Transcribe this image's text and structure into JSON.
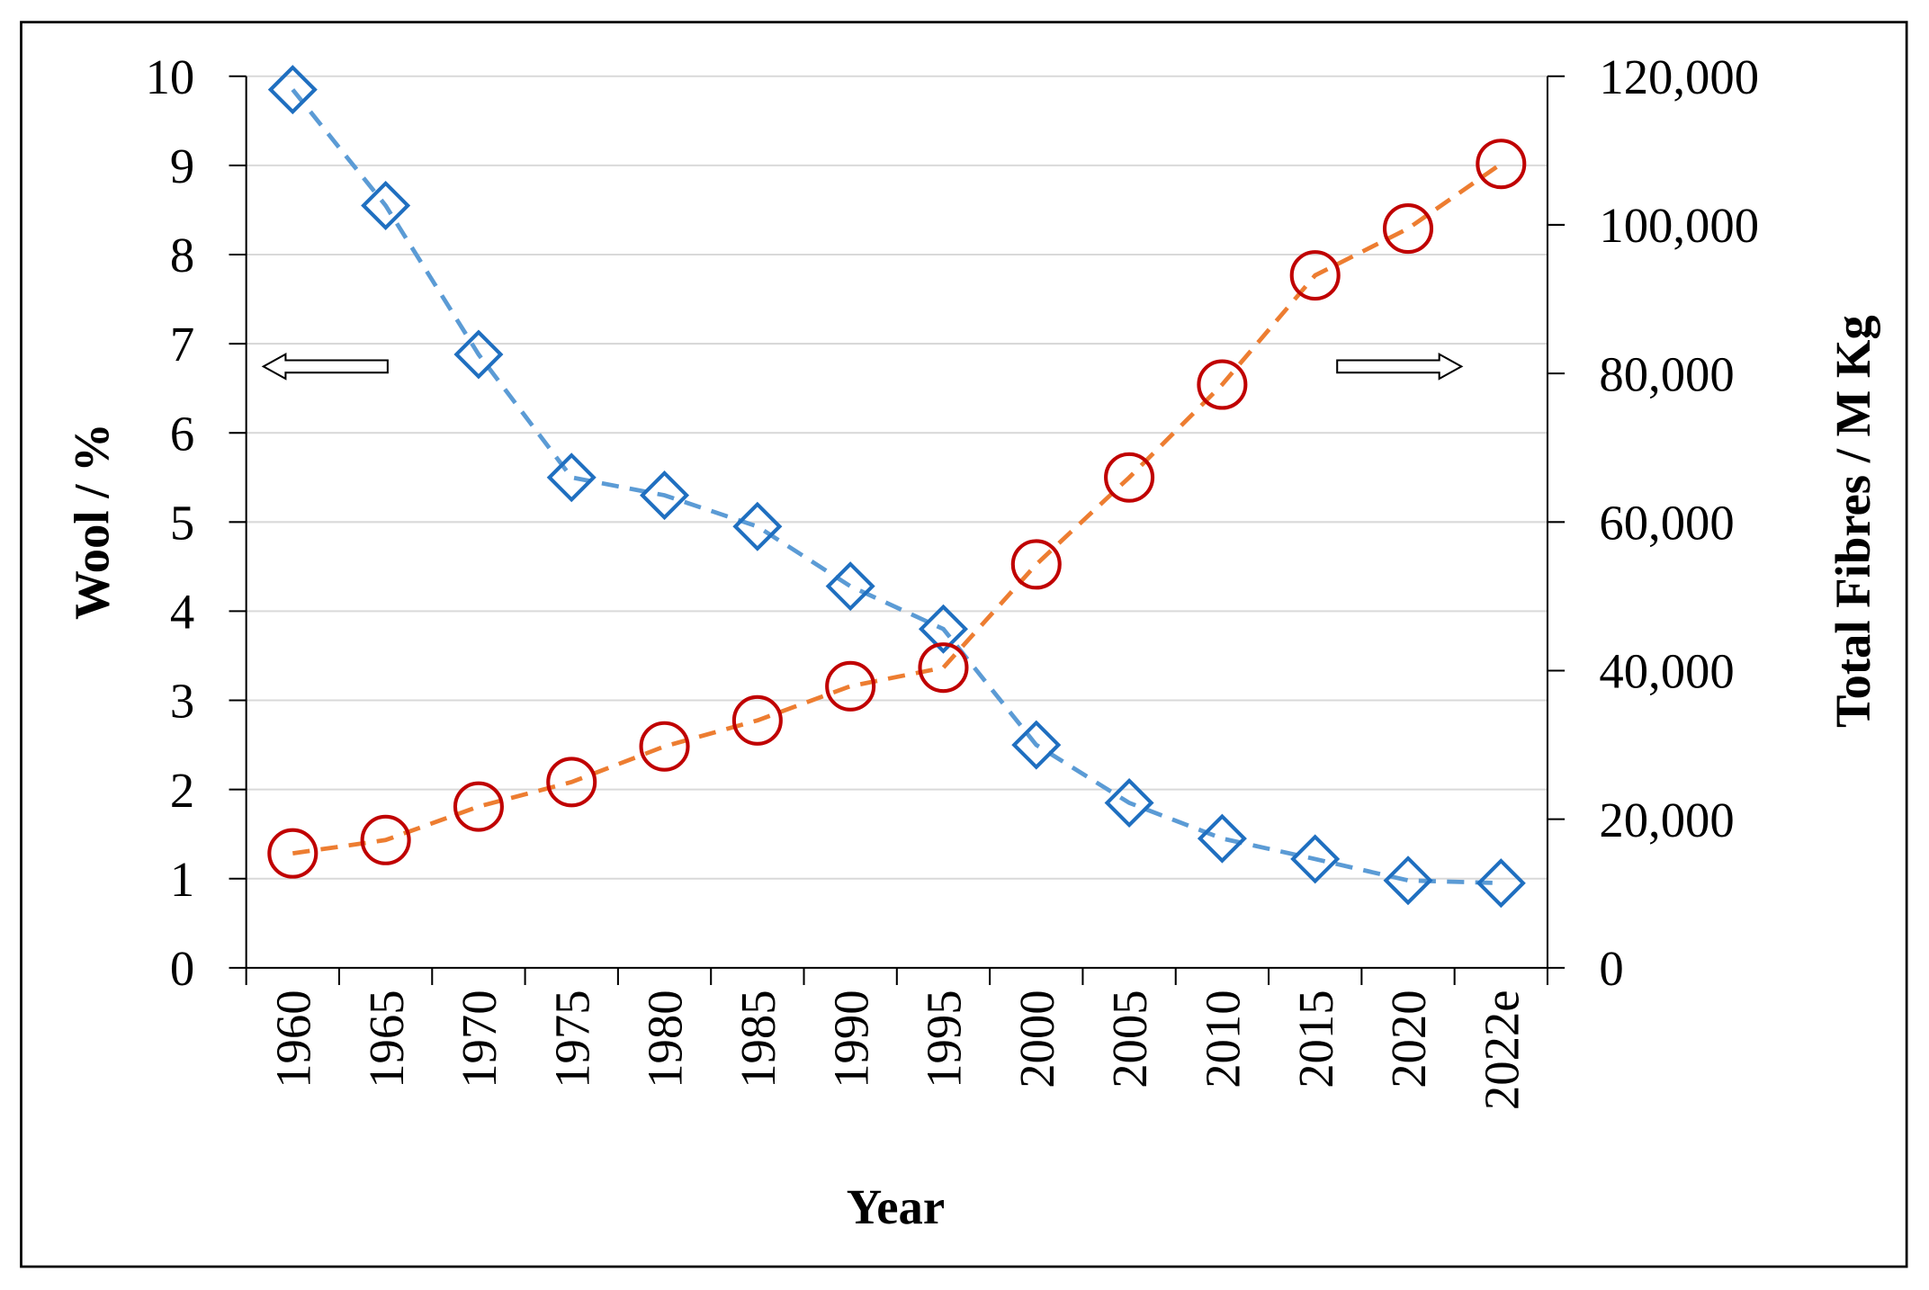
{
  "chart_data": {
    "type": "line",
    "x_label": "Year",
    "y_label": "Wool / %",
    "y2_label": "Total Fibres / M Kg",
    "categories": [
      "1960",
      "1965",
      "1970",
      "1975",
      "1980",
      "1985",
      "1990",
      "1995",
      "2000",
      "2005",
      "2010",
      "2015",
      "2020",
      "2022e"
    ],
    "series": [
      {
        "name": "Wool",
        "color": "#5b9bd5",
        "marker_color": "#1f6fc0",
        "marker": "diamond",
        "values": [
          9.85,
          8.55,
          6.88,
          5.5,
          5.3,
          4.95,
          4.28,
          3.8,
          2.5,
          1.85,
          1.45,
          1.22,
          0.98,
          0.95
        ]
      },
      {
        "name": "Total Fibres",
        "color": "#ed7d31",
        "marker_color": "#c00000",
        "marker": "circle",
        "axis": "y2",
        "values": [
          15400,
          17200,
          21700,
          25000,
          29800,
          33300,
          37900,
          40400,
          54300,
          66000,
          78500,
          93200,
          99500,
          108200
        ]
      }
    ],
    "ylim": [
      0,
      10
    ],
    "yticks": [
      0,
      1,
      2,
      3,
      4,
      5,
      6,
      7,
      8,
      9,
      10
    ],
    "y2lim": [
      0,
      120000
    ],
    "y2ticks": [
      0,
      {
        "value": 20000,
        "label": "20,000"
      },
      {
        "value": 40000,
        "label": "40,000"
      },
      {
        "value": 60000,
        "label": "60,000"
      },
      {
        "value": 80000,
        "label": "80,000"
      },
      {
        "value": 100000,
        "label": "100,000"
      },
      {
        "value": 120000,
        "label": "120,000"
      }
    ],
    "grid": true
  }
}
